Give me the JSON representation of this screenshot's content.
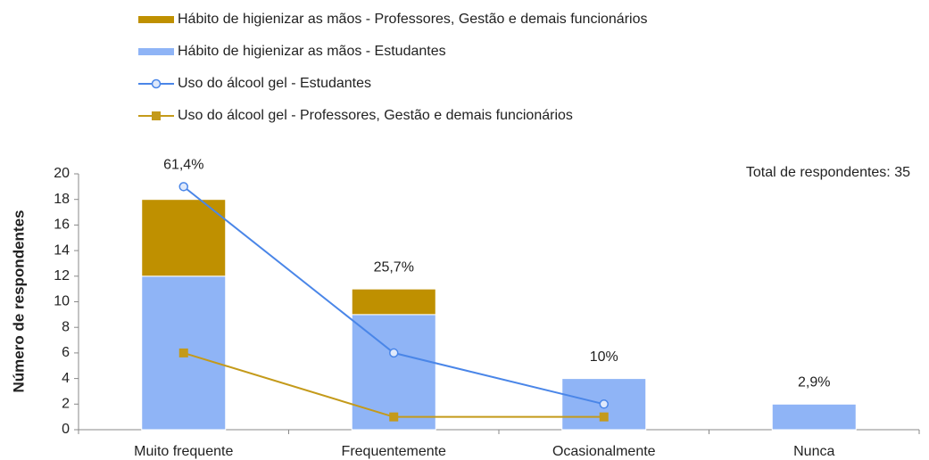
{
  "chart_data": {
    "type": "bar",
    "y_label": "Número de respondentes",
    "annotation": "Total de respondentes: 35",
    "categories": [
      "Muito frequente",
      "Frequentemente",
      "Ocasionalmente",
      "Nunca"
    ],
    "bar_labels": [
      "61,4%",
      "25,7%",
      "10%",
      "2,9%"
    ],
    "series": [
      {
        "name": "Hábito de higienizar as mãos - Estudantes",
        "type": "bar",
        "color": "#8fb4f6",
        "values": [
          12,
          9,
          4,
          2
        ]
      },
      {
        "name": "Hábito de higienizar as mãos - Professores, Gestão e demais funcionários",
        "type": "bar",
        "color": "#bf9000",
        "values": [
          6,
          2,
          0,
          0
        ]
      },
      {
        "name": "Uso do álcool gel - Estudantes",
        "type": "line",
        "marker": "circle",
        "color": "#4a86e8",
        "values": [
          19,
          6,
          2,
          null
        ]
      },
      {
        "name": "Uso do álcool gel - Professores, Gestão e demais funcionários",
        "type": "line",
        "marker": "square",
        "color": "#c49a1a",
        "values": [
          6,
          1,
          1,
          null
        ]
      }
    ],
    "ylim": [
      0,
      20
    ],
    "yticks": [
      0,
      2,
      4,
      6,
      8,
      10,
      12,
      14,
      16,
      18,
      20
    ]
  }
}
